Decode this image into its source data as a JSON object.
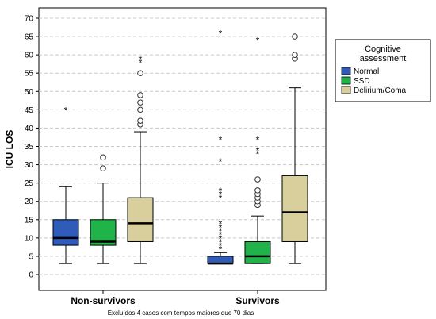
{
  "chart_data": {
    "type": "boxplot",
    "ylabel": "ICU LOS",
    "ylim": [
      0,
      70
    ],
    "yticks": [
      0,
      5,
      10,
      15,
      20,
      25,
      30,
      35,
      40,
      45,
      50,
      55,
      60,
      65,
      70
    ],
    "grid": "horizontal dashed",
    "groups": [
      "Non-survivors",
      "Survivors"
    ],
    "legend": {
      "title": [
        "Cognitive",
        "assessment"
      ],
      "placement": "right",
      "entries": [
        {
          "name": "Normal",
          "color": "#2e5cb8"
        },
        {
          "name": "SSD",
          "color": "#1fb34a"
        },
        {
          "name": "Delirium/Coma",
          "color": "#d8cf9c"
        }
      ]
    },
    "footnote": "Excluídos 4 casos com tempos maiores que 70 dias",
    "boxes": [
      {
        "group": "Non-survivors",
        "series": "Normal",
        "whisker_low": 3,
        "q1": 8,
        "median": 10,
        "q3": 15,
        "whisker_high": 24,
        "outliers": [],
        "extremes": [
          45
        ]
      },
      {
        "group": "Non-survivors",
        "series": "SSD",
        "whisker_low": 3,
        "q1": 8,
        "median": 9,
        "q3": 15,
        "whisker_high": 25,
        "outliers": [
          29,
          32
        ],
        "extremes": []
      },
      {
        "group": "Non-survivors",
        "series": "Delirium/Coma",
        "whisker_low": 3,
        "q1": 9,
        "median": 14,
        "q3": 21,
        "whisker_high": 39,
        "outliers": [
          41,
          42,
          45,
          47,
          49,
          55
        ],
        "extremes": [
          58,
          59
        ]
      },
      {
        "group": "Survivors",
        "series": "Normal",
        "whisker_low": 3,
        "q1": 3,
        "median": 3,
        "q3": 5,
        "whisker_high": 6,
        "outliers": [],
        "extremes": [
          7,
          8,
          9,
          10,
          11,
          12,
          13,
          14,
          21,
          22,
          23,
          31,
          37,
          66
        ]
      },
      {
        "group": "Survivors",
        "series": "SSD",
        "whisker_low": 3,
        "q1": 3,
        "median": 5,
        "q3": 9,
        "whisker_high": 16,
        "outliers": [
          19,
          20,
          21,
          22,
          23,
          26
        ],
        "extremes": [
          33,
          34,
          37,
          64
        ]
      },
      {
        "group": "Survivors",
        "series": "Delirium/Coma",
        "whisker_low": 3,
        "q1": 9,
        "median": 17,
        "q3": 27,
        "whisker_high": 51,
        "outliers": [
          59,
          60,
          65
        ],
        "extremes": []
      }
    ]
  }
}
